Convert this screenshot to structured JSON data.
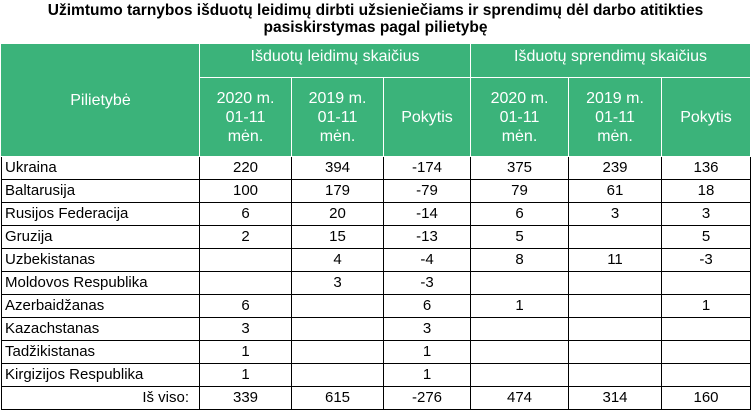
{
  "title_line1": "Užimtumo tarnybos išduotų leidimų dirbti užsieniečiams ir sprendimų dėl darbo atitikties",
  "title_line2": "pasiskirstymas pagal pilietybę",
  "header": {
    "pilietybe": "Pilietybė",
    "group_leidimai": "Išduotų leidimų skaičius",
    "group_sprendimai": "Išduotų sprendimų skaičius",
    "cols": [
      [
        "2020 m.",
        "01-11",
        "mėn."
      ],
      [
        "2019 m.",
        "01-11",
        "mėn."
      ],
      [
        "Pokytis"
      ],
      [
        "2020 m.",
        "01-11",
        "mėn."
      ],
      [
        "2019 m.",
        "01-11",
        "mėn."
      ],
      [
        "Pokytis"
      ]
    ]
  },
  "rows": [
    {
      "name": "Ukraina",
      "v": [
        "220",
        "394",
        "-174",
        "375",
        "239",
        "136"
      ]
    },
    {
      "name": "Baltarusija",
      "v": [
        "100",
        "179",
        "-79",
        "79",
        "61",
        "18"
      ]
    },
    {
      "name": "Rusijos Federacija",
      "v": [
        "6",
        "20",
        "-14",
        "6",
        "3",
        "3"
      ]
    },
    {
      "name": "Gruzija",
      "v": [
        "2",
        "15",
        "-13",
        "5",
        "",
        "5"
      ]
    },
    {
      "name": "Uzbekistanas",
      "v": [
        "",
        "4",
        "-4",
        "8",
        "11",
        "-3"
      ]
    },
    {
      "name": "Moldovos Respublika",
      "v": [
        "",
        "3",
        "-3",
        "",
        "",
        ""
      ]
    },
    {
      "name": "Azerbaidžanas",
      "v": [
        "6",
        "",
        "6",
        "1",
        "",
        "1"
      ]
    },
    {
      "name": "Kazachstanas",
      "v": [
        "3",
        "",
        "3",
        "",
        "",
        ""
      ]
    },
    {
      "name": "Tadžikistanas",
      "v": [
        "1",
        "",
        "1",
        "",
        "",
        ""
      ]
    },
    {
      "name": "Kirgizijos Respublika",
      "v": [
        "1",
        "",
        "1",
        "",
        "",
        ""
      ]
    }
  ],
  "total": {
    "name": "Iš viso:",
    "v": [
      "339",
      "615",
      "-276",
      "474",
      "314",
      "160"
    ]
  },
  "colors": {
    "header_bg": "#3bb37a",
    "header_text": "#ffffff"
  }
}
